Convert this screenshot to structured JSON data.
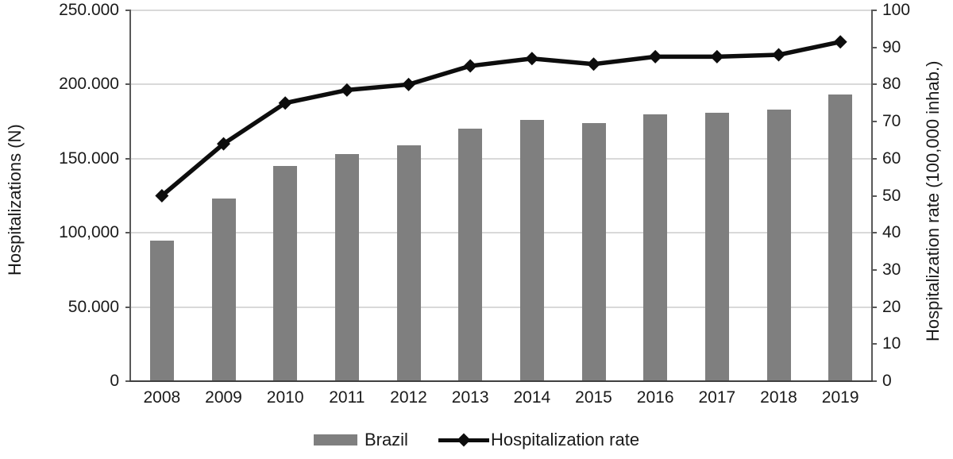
{
  "chart_data": {
    "type": "combo-bar-line",
    "categories": [
      "2008",
      "2009",
      "2010",
      "2011",
      "2012",
      "2013",
      "2014",
      "2015",
      "2016",
      "2017",
      "2018",
      "2019"
    ],
    "series": [
      {
        "name": "Brazil",
        "kind": "bar",
        "axis": "left",
        "values": [
          95000,
          123000,
          145000,
          153000,
          159000,
          170000,
          176000,
          174000,
          180000,
          181000,
          183000,
          193000
        ]
      },
      {
        "name": "Hospitalization rate",
        "kind": "line",
        "axis": "right",
        "marker": "diamond",
        "values": [
          50,
          64,
          75,
          78.5,
          80,
          85,
          87,
          85.5,
          87.5,
          87.5,
          88,
          91.5
        ]
      }
    ],
    "left_axis": {
      "title": "Hospitalizations (N)",
      "min": 0,
      "max": 250000,
      "ticks": [
        {
          "v": 0,
          "label": "0"
        },
        {
          "v": 50000,
          "label": "50.000"
        },
        {
          "v": 100000,
          "label": "100,000"
        },
        {
          "v": 150000,
          "label": "150.000"
        },
        {
          "v": 200000,
          "label": "200.000"
        },
        {
          "v": 250000,
          "label": "250.000"
        }
      ]
    },
    "right_axis": {
      "title": "Hospitalization rate (100,000 inhab.)",
      "min": 0,
      "max": 100,
      "ticks": [
        {
          "v": 0,
          "label": "0"
        },
        {
          "v": 10,
          "label": "10"
        },
        {
          "v": 20,
          "label": "20"
        },
        {
          "v": 30,
          "label": "30"
        },
        {
          "v": 40,
          "label": "40"
        },
        {
          "v": 50,
          "label": "50"
        },
        {
          "v": 60,
          "label": "60"
        },
        {
          "v": 70,
          "label": "70"
        },
        {
          "v": 80,
          "label": "80"
        },
        {
          "v": 90,
          "label": "90"
        },
        {
          "v": 100,
          "label": "100"
        }
      ]
    },
    "grid": true,
    "legend_position": "bottom",
    "legend": [
      {
        "label": "Brazil",
        "swatch": "bar"
      },
      {
        "label": "Hospitalization rate",
        "swatch": "line-diamond"
      }
    ]
  },
  "colors": {
    "bar": "#7f7f7f",
    "line": "#0d0d0d",
    "grid": "#d9d9d9",
    "axis": "#595959",
    "text": "#1a1a1a",
    "background": "#ffffff"
  }
}
